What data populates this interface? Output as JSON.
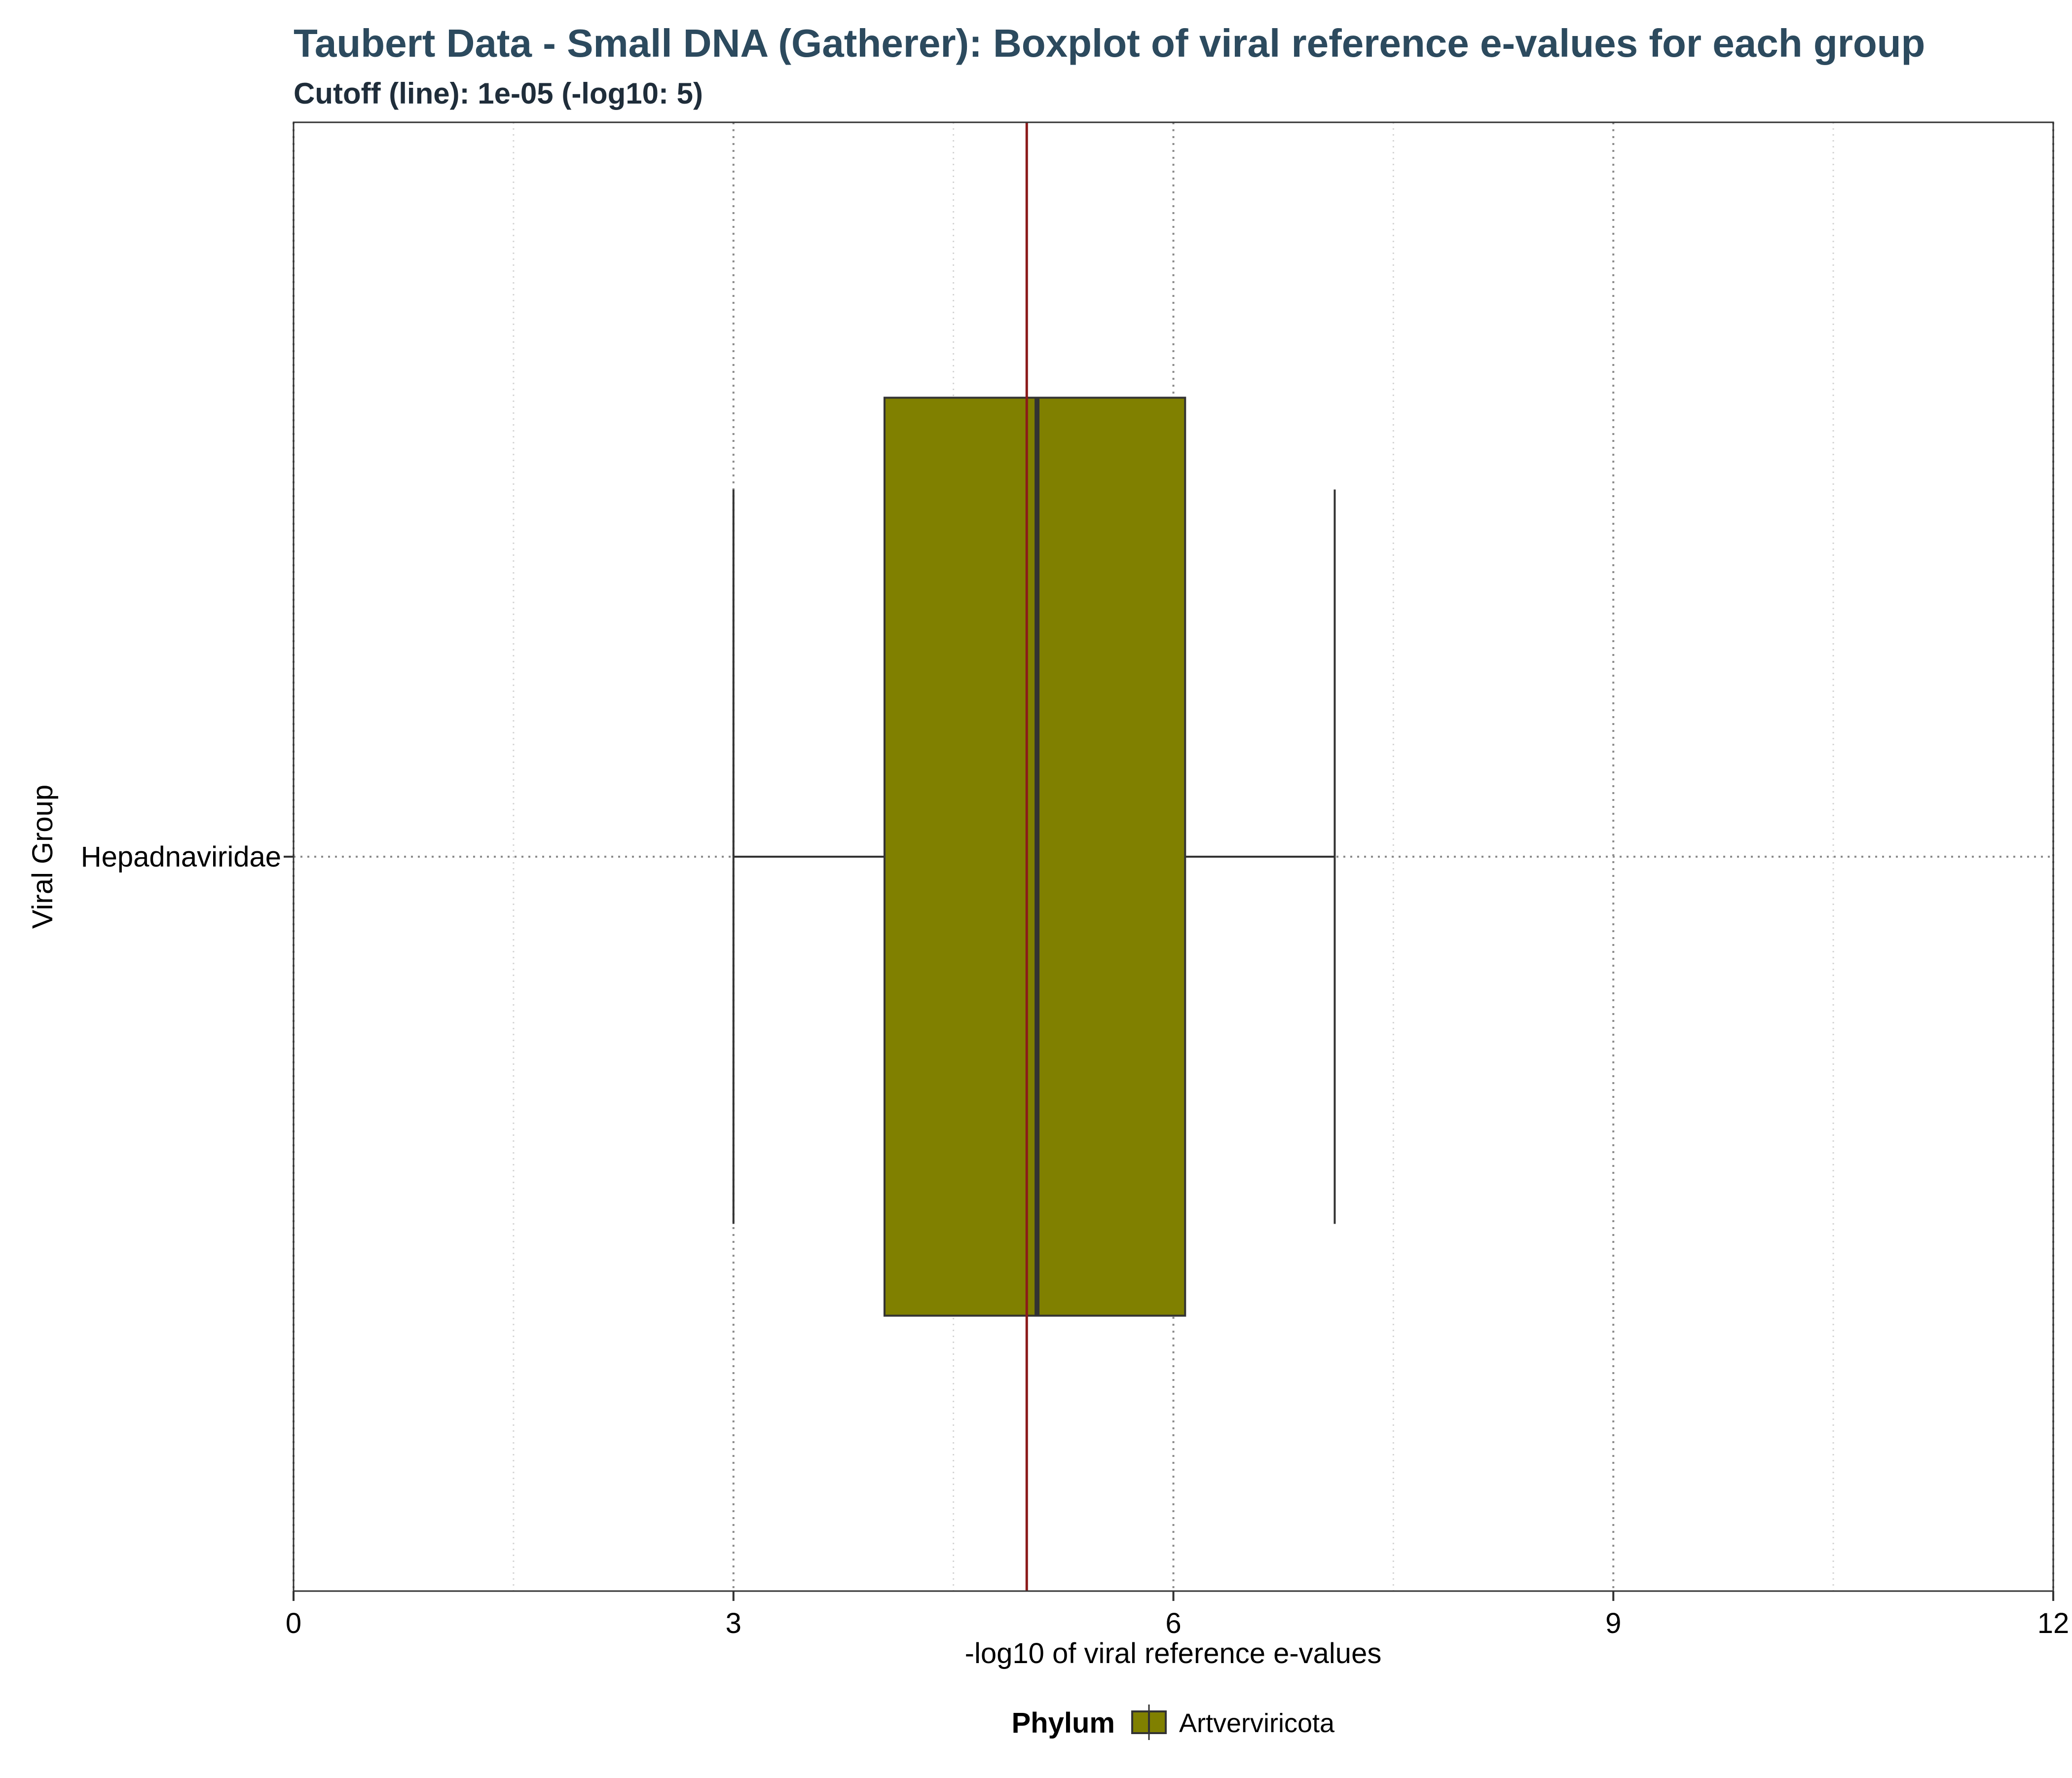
{
  "chart_data": {
    "type": "boxplot",
    "orientation": "horizontal",
    "title": "Taubert Data - Small DNA (Gatherer): Boxplot of viral reference e-values for each group",
    "subtitle": "Cutoff (line): 1e-05 (-log10: 5)",
    "xlabel": "-log10 of viral reference e-values",
    "ylabel": "Viral Group",
    "xlim": [
      0,
      12
    ],
    "x_ticks": [
      0,
      3,
      6,
      9,
      12
    ],
    "grid": {
      "major": "dotted",
      "minor": "dotted"
    },
    "cutoff": {
      "value": 5,
      "color": "#8b1a1a"
    },
    "categories": [
      "Hepadnaviridae"
    ],
    "boxes": [
      {
        "category": "Hepadnaviridae",
        "phylum": "Artverviricota",
        "whisker_low": 3.0,
        "q1": 4.03,
        "median": 5.07,
        "q3": 6.08,
        "whisker_high": 7.1,
        "color": "#808000"
      }
    ],
    "legend": {
      "title": "Phylum",
      "placement": "bottom",
      "entries": [
        {
          "label": "Artverviricota",
          "color": "#808000"
        }
      ]
    }
  }
}
